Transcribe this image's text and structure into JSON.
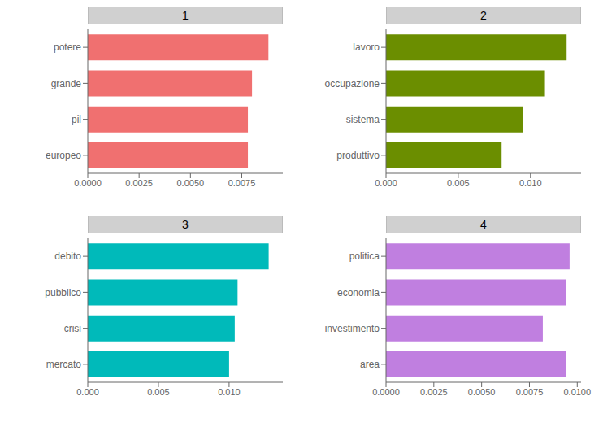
{
  "chart_data": [
    {
      "type": "bar",
      "orientation": "horizontal",
      "title": "1",
      "categories": [
        "potere",
        "grande",
        "pil",
        "europeo"
      ],
      "values": [
        0.0088,
        0.008,
        0.0078,
        0.0078
      ],
      "color": "#F07070",
      "xlim": [
        0,
        0.0095
      ],
      "xticks": [
        {
          "value": 0,
          "label": "0.0000"
        },
        0.0025,
        {
          "value": 0.005,
          "label": "0.0050"
        },
        0.0075
      ]
    },
    {
      "type": "bar",
      "orientation": "horizontal",
      "title": "2",
      "categories": [
        "lavoro",
        "occupazione",
        "sistema",
        "produttivo"
      ],
      "values": [
        0.0125,
        0.011,
        0.0095,
        0.008
      ],
      "color": "#6B8E00",
      "xlim": [
        0,
        0.0135
      ],
      "xticks": [
        {
          "value": 0,
          "label": "0.000"
        },
        0.005,
        {
          "value": 0.01,
          "label": "0.010"
        }
      ]
    },
    {
      "type": "bar",
      "orientation": "horizontal",
      "title": "3",
      "categories": [
        "debito",
        "pubblico",
        "crisi",
        "mercato"
      ],
      "values": [
        0.0128,
        0.0106,
        0.0104,
        0.01
      ],
      "color": "#00BABA",
      "xlim": [
        0,
        0.0138
      ],
      "xticks": [
        {
          "value": 0,
          "label": "0.000"
        },
        0.005,
        {
          "value": 0.01,
          "label": "0.010"
        }
      ]
    },
    {
      "type": "bar",
      "orientation": "horizontal",
      "title": "4",
      "categories": [
        "politica",
        "economia",
        "investimento",
        "area"
      ],
      "values": [
        0.0096,
        0.0094,
        0.0082,
        0.0094
      ],
      "color": "#C07FE0",
      "xlim": [
        0,
        0.0102
      ],
      "xticks": [
        {
          "value": 0,
          "label": "0.0000"
        },
        0.0025,
        {
          "value": 0.005,
          "label": "0.0050"
        },
        0.0075,
        {
          "value": 0.01,
          "label": "0.0100"
        }
      ]
    }
  ]
}
